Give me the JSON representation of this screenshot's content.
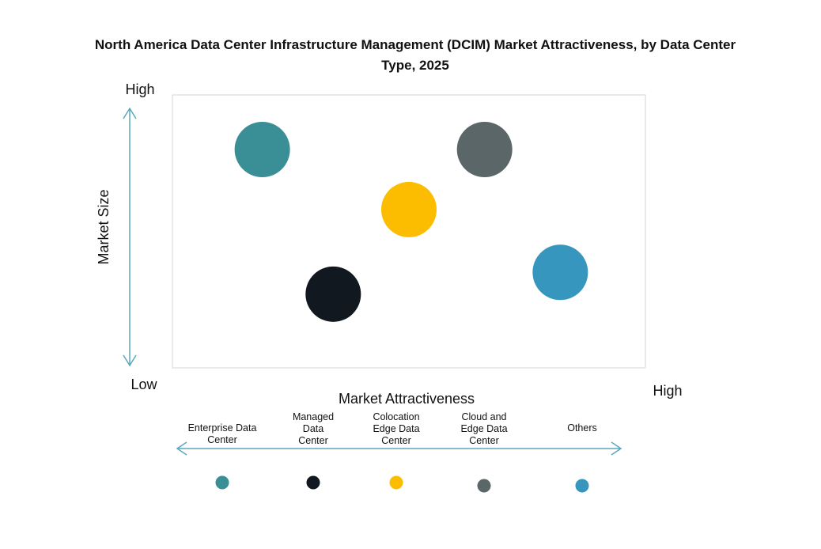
{
  "chart_data": {
    "type": "scatter",
    "title_line1": "North America Data Center Infrastructure Management (DCIM) Market Attractiveness,  by Data Center",
    "title_line2": "Type, 2025",
    "xlabel": "Market Attractiveness",
    "ylabel": "Market Size",
    "x_low": "Low",
    "x_high": "High",
    "y_high": "High",
    "xlim": [
      0,
      100
    ],
    "ylim": [
      0,
      100
    ],
    "grid": false,
    "legend_placement": "bottom",
    "series": [
      {
        "name": "Enterprise Data Center",
        "label_lines": [
          "Enterprise Data",
          "Center"
        ],
        "x": 19,
        "y": 80,
        "color": "#3a8f96"
      },
      {
        "name": "Managed Data Center",
        "label_lines": [
          "Managed",
          "Data",
          "Center"
        ],
        "x": 34,
        "y": 27,
        "color": "#121820"
      },
      {
        "name": "Colocation Edge Data Center",
        "label_lines": [
          "Colocation",
          "Edge Data",
          "Center"
        ],
        "x": 50,
        "y": 58,
        "color": "#fcbd00"
      },
      {
        "name": "Cloud and Edge Data Center",
        "label_lines": [
          "Cloud and",
          "Edge Data",
          "Center"
        ],
        "x": 66,
        "y": 80,
        "color": "#5a6667"
      },
      {
        "name": "Others",
        "label_lines": [
          "Others"
        ],
        "x": 82,
        "y": 35,
        "color": "#3796bd"
      }
    ],
    "arrow_color": "#5aa8bf"
  }
}
